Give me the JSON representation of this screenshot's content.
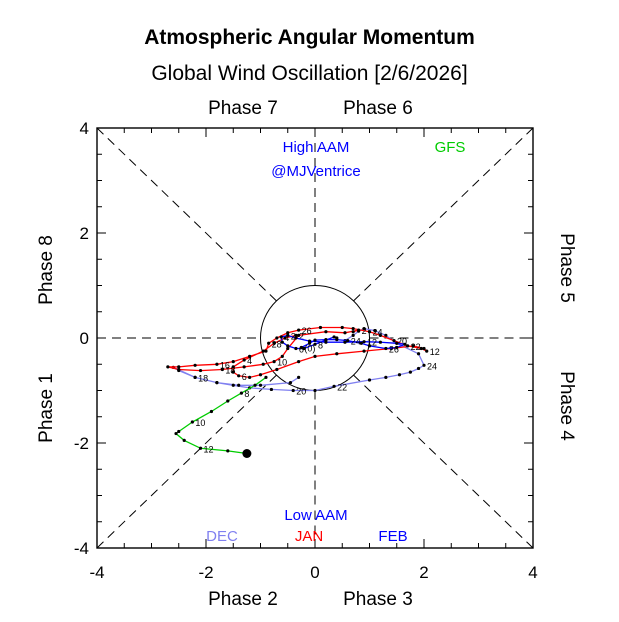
{
  "chart_data": {
    "type": "line",
    "title": "Atmospheric Angular Momentum",
    "subtitle": "Global Wind Oscillation [2/6/2026]",
    "xlim": [
      -4,
      4
    ],
    "ylim": [
      -4,
      4
    ],
    "x_ticks": [
      -4,
      -2,
      0,
      2,
      4
    ],
    "y_ticks": [
      -4,
      -2,
      0,
      2,
      4
    ],
    "x_tick_labels": [
      "-4",
      "-2",
      "0",
      "2",
      "4"
    ],
    "y_tick_labels": [
      "-4",
      "-2",
      "0",
      "2",
      "4"
    ],
    "phase_labels": {
      "top_left": "Phase 7",
      "top_right": "Phase 6",
      "bottom_left": "Phase 2",
      "bottom_right": "Phase 3",
      "left_upper": "Phase 8",
      "left_lower": "Phase 1",
      "right_upper": "Phase 5",
      "right_lower": "Phase 4"
    },
    "annotations": {
      "high": "High AAM",
      "author": "@MJVentrice",
      "low": "Low AAM",
      "forecast": "GFS"
    },
    "unit_circle_radius": 1,
    "colors": {
      "DEC": "#8080f0",
      "JAN": "#ff0000",
      "FEB": "#0000ff",
      "GFS": "#00cc00",
      "annotation": "#0000ff"
    },
    "series": [
      {
        "name": "DEC",
        "color": "#8080f0",
        "x": [
          0.55,
          0.7,
          0.8,
          0.9,
          1.1,
          1.3,
          1.5,
          1.9,
          2.0,
          1.9,
          1.75,
          1.55,
          1.3,
          1.0,
          0.35,
          0.0,
          -0.4,
          -0.8,
          -1.2,
          -1.5,
          -1.8,
          -2.2,
          -2.6,
          -2.5,
          -2.2,
          -1.8,
          -1.4,
          -1.0,
          -0.45,
          -0.3
        ],
        "y": [
          -0.05,
          0.05,
          0.13,
          0.18,
          0.14,
          0.05,
          -0.1,
          -0.3,
          -0.52,
          -0.58,
          -0.65,
          -0.7,
          -0.75,
          -0.8,
          -0.92,
          -1.0,
          -1.0,
          -0.98,
          -0.95,
          -0.9,
          -0.85,
          -0.75,
          -0.56,
          -0.62,
          -0.75,
          -0.85,
          -0.9,
          -0.9,
          -0.85,
          -0.75
        ],
        "labels": [
          {
            "i": 8,
            "text": "24"
          },
          {
            "i": 14,
            "text": "22"
          },
          {
            "i": 16,
            "text": "20"
          },
          {
            "i": 21,
            "text": "18"
          }
        ]
      },
      {
        "name": "JAN",
        "color": "#ff0000",
        "x": [
          -0.35,
          -0.55,
          -0.75,
          -0.95,
          -1.3,
          -1.5,
          -1.5,
          -1.4,
          -1.2,
          -1.0,
          -0.7,
          -0.3,
          0.0,
          0.4,
          0.9,
          1.4,
          1.8,
          2.0,
          2.05,
          1.95,
          1.7,
          1.45,
          1.2,
          1.0,
          0.7,
          0.5,
          0.1,
          -0.3,
          -0.5,
          -0.7,
          -0.85,
          -0.9,
          -1.2,
          -1.5,
          -1.8,
          -2.2,
          -2.5,
          -2.7,
          -2.5,
          -2.1,
          -1.7,
          -1.3,
          -0.95,
          -0.75,
          -0.6,
          -0.5,
          -0.3,
          0.2,
          0.55,
          0.8,
          0.7
        ],
        "y": [
          0.05,
          0.0,
          -0.1,
          -0.25,
          -0.42,
          -0.55,
          -0.65,
          -0.72,
          -0.75,
          -0.7,
          -0.6,
          -0.45,
          -0.35,
          -0.3,
          -0.25,
          -0.2,
          -0.15,
          -0.2,
          -0.25,
          -0.2,
          -0.15,
          -0.05,
          0.05,
          0.12,
          0.18,
          0.2,
          0.2,
          0.15,
          0.1,
          0.0,
          -0.1,
          -0.25,
          -0.35,
          -0.45,
          -0.5,
          -0.52,
          -0.55,
          -0.55,
          -0.6,
          -0.62,
          -0.6,
          -0.55,
          -0.5,
          -0.45,
          -0.35,
          -0.2,
          0.05,
          0.12,
          0.1,
          0.15,
          0.12
        ],
        "labels": [
          {
            "i": 0,
            "text": "2"
          },
          {
            "i": 4,
            "text": "4"
          },
          {
            "i": 7,
            "text": "6"
          },
          {
            "i": 18,
            "text": "12"
          },
          {
            "i": 20,
            "text": "22"
          },
          {
            "i": 21,
            "text": "20"
          },
          {
            "i": 23,
            "text": "24"
          },
          {
            "i": 27,
            "text": "26"
          },
          {
            "i": 30,
            "text": "28"
          },
          {
            "i": 34,
            "text": "16"
          },
          {
            "i": 40,
            "text": "18"
          },
          {
            "i": 43,
            "text": "10"
          },
          {
            "i": 49,
            "text": "2"
          }
        ]
      },
      {
        "name": "FEB",
        "color": "#0000ff",
        "x": [
          -0.25,
          -0.1,
          0.0,
          0.2,
          0.4,
          0.6,
          0.85,
          1.0,
          1.3,
          1.5,
          1.65,
          1.5,
          1.2,
          0.9,
          0.55,
          0.2,
          -0.1,
          -0.35,
          -0.5,
          -0.62,
          -0.6,
          -0.5,
          -0.35,
          -0.2,
          0.0,
          0.2,
          0.35,
          0.4
        ],
        "y": [
          -0.18,
          -0.1,
          -0.04,
          -0.03,
          -0.03,
          -0.05,
          -0.1,
          -0.15,
          -0.2,
          -0.18,
          -0.12,
          -0.1,
          -0.08,
          -0.07,
          -0.08,
          -0.08,
          -0.06,
          0.0,
          0.05,
          0.02,
          -0.08,
          -0.15,
          -0.2,
          -0.2,
          -0.12,
          -0.04,
          0.02,
          0.0
        ],
        "labels": [
          {
            "i": 0,
            "text": "(0)"
          },
          {
            "i": 5,
            "text": "24"
          },
          {
            "i": 8,
            "text": "26"
          },
          {
            "i": 13,
            "text": "12"
          },
          {
            "i": 18,
            "text": "2"
          },
          {
            "i": 19,
            "text": "4"
          },
          {
            "i": 22,
            "text": "6"
          },
          {
            "i": 24,
            "text": "8"
          }
        ]
      },
      {
        "name": "GFS",
        "color": "#00cc00",
        "x": [
          -0.9,
          -1.1,
          -1.35,
          -1.6,
          -1.9,
          -2.25,
          -2.5,
          -2.55,
          -2.4,
          -2.1,
          -1.6,
          -1.25
        ],
        "y": [
          -0.75,
          -0.9,
          -1.05,
          -1.2,
          -1.4,
          -1.6,
          -1.78,
          -1.82,
          -1.95,
          -2.1,
          -2.15,
          -2.2
        ],
        "labels": [
          {
            "i": 2,
            "text": "8"
          },
          {
            "i": 5,
            "text": "10"
          },
          {
            "i": 9,
            "text": "12"
          }
        ]
      }
    ],
    "last_forecast_point": {
      "x": -1.25,
      "y": -2.2
    },
    "legend": [
      "DEC",
      "JAN",
      "FEB"
    ],
    "legend_placement": "bottom-center",
    "grid": false
  }
}
